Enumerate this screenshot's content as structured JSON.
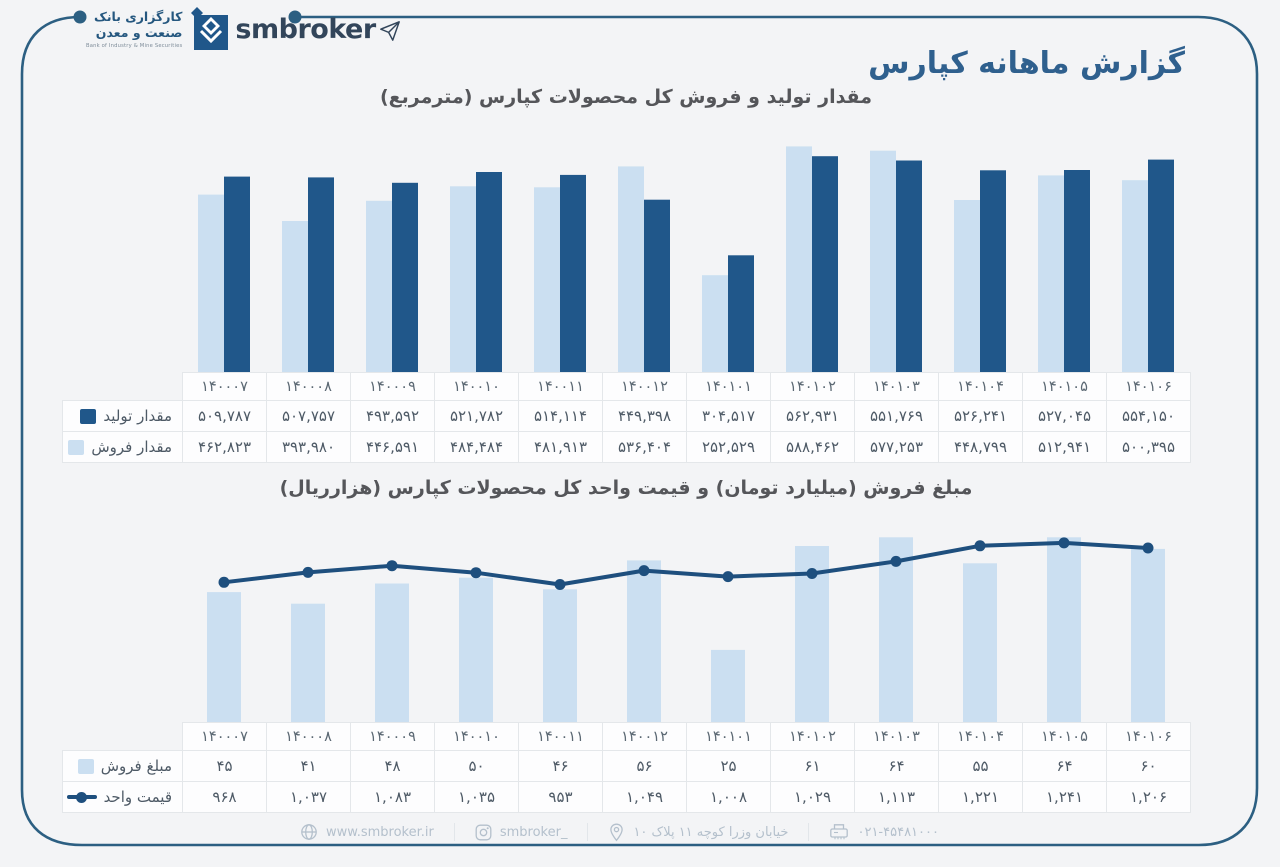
{
  "brand": {
    "name_fa_line1": "کارگزاری بانک",
    "name_fa_line2": "صنعت و معدن",
    "name_en": "Bank of Industry & Mine Securities",
    "name_latin": "smbroker"
  },
  "page_title": "گزارش ماهانه کپارس",
  "colors": {
    "background": "#f3f4f6",
    "frame": "#2c5f82",
    "bar_dark": "#20578a",
    "bar_light": "#cbdff1",
    "line": "#1e4f7e",
    "title_blue": "#2f608e",
    "chart_title_gray": "#55565a"
  },
  "chart_data": [
    {
      "type": "bar",
      "title": "مقدار تولید و فروش کل محصولات کپارس (مترمربع)",
      "categories": [
        "۱۴۰۰۰۷",
        "۱۴۰۰۰۸",
        "۱۴۰۰۰۹",
        "۱۴۰۰۱۰",
        "۱۴۰۰۱۱",
        "۱۴۰۰۱۲",
        "۱۴۰۱۰۱",
        "۱۴۰۱۰۲",
        "۱۴۰۱۰۳",
        "۱۴۰۱۰۴",
        "۱۴۰۱۰۵",
        "۱۴۰۱۰۶"
      ],
      "ylim": [
        0,
        600000
      ],
      "grid": false,
      "legend_position": "table-row-headers",
      "series": [
        {
          "name": "مقدار تولید",
          "chart": "bar",
          "marker": "square",
          "color": "#20578a",
          "values": [
            509787,
            507757,
            493592,
            521782,
            514114,
            449398,
            304517,
            562931,
            551769,
            526241,
            527045,
            554150
          ],
          "labels": [
            "۵۰۹,۷۸۷",
            "۵۰۷,۷۵۷",
            "۴۹۳,۵۹۲",
            "۵۲۱,۷۸۲",
            "۵۱۴,۱۱۴",
            "۴۴۹,۳۹۸",
            "۳۰۴,۵۱۷",
            "۵۶۲,۹۳۱",
            "۵۵۱,۷۶۹",
            "۵۲۶,۲۴۱",
            "۵۲۷,۰۴۵",
            "۵۵۴,۱۵۰"
          ]
        },
        {
          "name": "مقدار فروش",
          "chart": "bar",
          "marker": "square",
          "color": "#cbdff1",
          "values": [
            462823,
            393980,
            446591,
            484484,
            481913,
            536404,
            252529,
            588462,
            577253,
            448799,
            512941,
            500395
          ],
          "labels": [
            "۴۶۲,۸۲۳",
            "۳۹۳,۹۸۰",
            "۴۴۶,۵۹۱",
            "۴۸۴,۴۸۴",
            "۴۸۱,۹۱۳",
            "۵۳۶,۴۰۴",
            "۲۵۲,۵۲۹",
            "۵۸۸,۴۶۲",
            "۵۷۷,۲۵۳",
            "۴۴۸,۷۹۹",
            "۵۱۲,۹۴۱",
            "۵۰۰,۳۹۵"
          ]
        }
      ]
    },
    {
      "type": "bar+line",
      "title": "مبلغ فروش (میلیارد تومان) و قیمت واحد کل محصولات کپارس (هزارریال)",
      "categories": [
        "۱۴۰۰۰۷",
        "۱۴۰۰۰۸",
        "۱۴۰۰۰۹",
        "۱۴۰۰۱۰",
        "۱۴۰۰۱۱",
        "۱۴۰۰۱۲",
        "۱۴۰۱۰۱",
        "۱۴۰۱۰۲",
        "۱۴۰۱۰۳",
        "۱۴۰۱۰۴",
        "۱۴۰۱۰۵",
        "۱۴۰۱۰۶"
      ],
      "grid": false,
      "legend_position": "table-row-headers",
      "series": [
        {
          "name": "مبلغ فروش",
          "chart": "bar",
          "marker": "square",
          "color": "#cbdff1",
          "ylim": [
            0,
            70
          ],
          "values": [
            45,
            41,
            48,
            50,
            46,
            56,
            25,
            61,
            64,
            55,
            64,
            60
          ],
          "labels": [
            "۴۵",
            "۴۱",
            "۴۸",
            "۵۰",
            "۴۶",
            "۵۶",
            "۲۵",
            "۶۱",
            "۶۴",
            "۵۵",
            "۶۴",
            "۶۰"
          ]
        },
        {
          "name": "قیمت واحد",
          "chart": "line",
          "marker": "line-dot",
          "color": "#1e4f7e",
          "ylim": [
            0,
            1400
          ],
          "values": [
            968,
            1037,
            1083,
            1035,
            953,
            1049,
            1008,
            1029,
            1113,
            1221,
            1241,
            1206
          ],
          "labels": [
            "۹۶۸",
            "۱,۰۳۷",
            "۱,۰۸۳",
            "۱,۰۳۵",
            "۹۵۳",
            "۱,۰۴۹",
            "۱,۰۰۸",
            "۱,۰۲۹",
            "۱,۱۱۳",
            "۱,۲۲۱",
            "۱,۲۴۱",
            "۱,۲۰۶"
          ]
        }
      ]
    }
  ],
  "footer": {
    "website": "www.smbroker.ir",
    "instagram": "smbroker_",
    "address": "خیابان وزرا کوچه ۱۱ پلاک ۱۰",
    "phone": "۰۲۱-۴۵۴۸۱۰۰۰"
  }
}
